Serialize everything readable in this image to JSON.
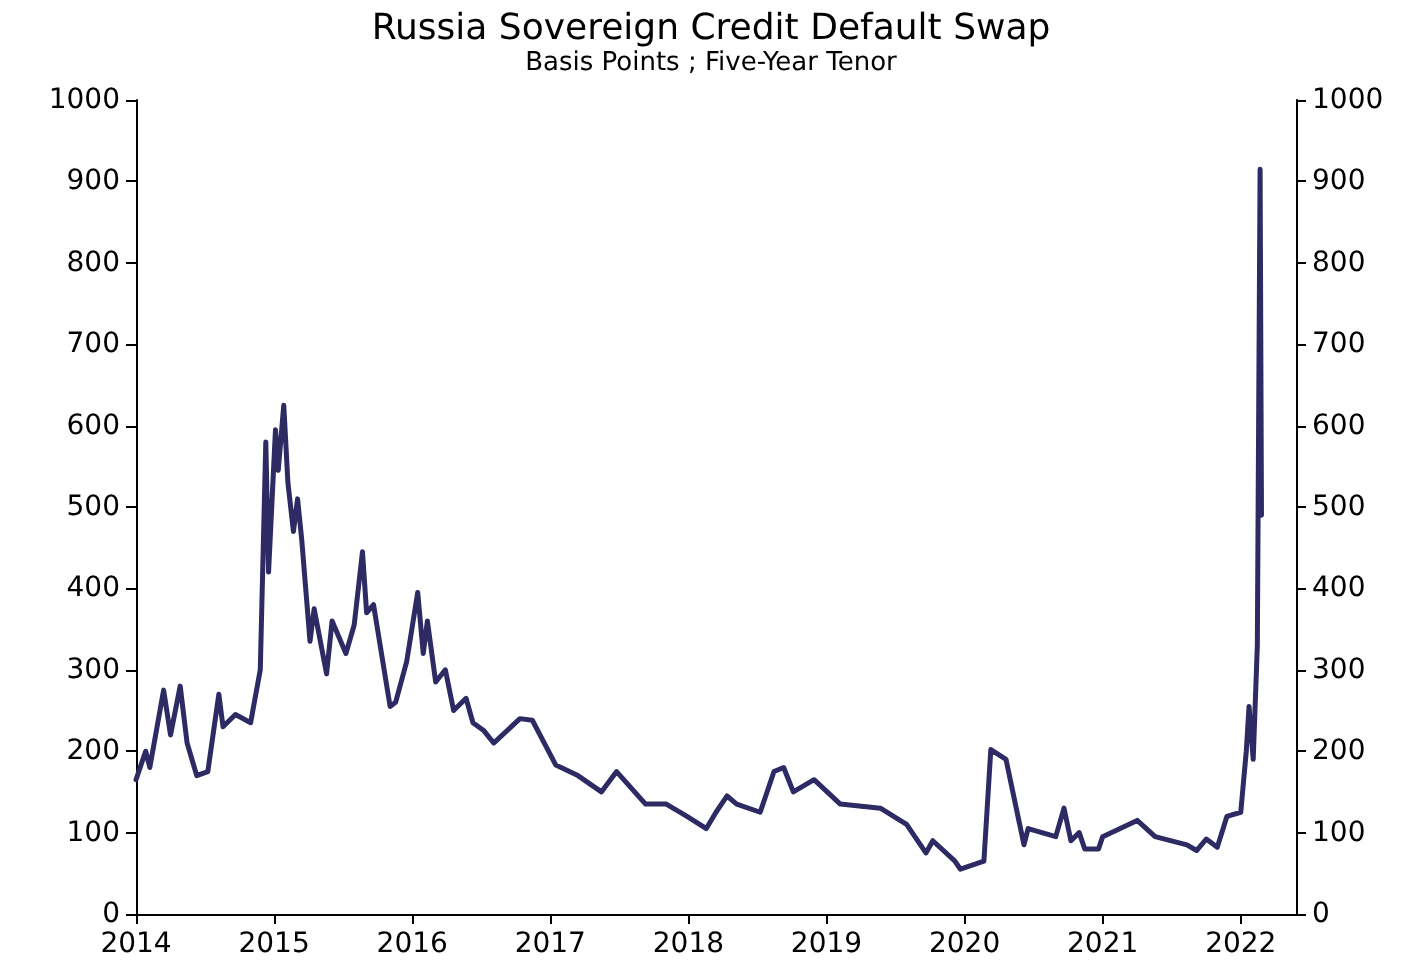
{
  "chart_data": {
    "type": "line",
    "title": "Russia Sovereign Credit Default Swap",
    "subtitle": "Basis Points ; Five-Year Tenor",
    "xlim": [
      2014,
      2022.4
    ],
    "xticks": [
      2014,
      2015,
      2016,
      2017,
      2018,
      2019,
      2020,
      2021,
      2022
    ],
    "ylim": [
      0,
      1000
    ],
    "yticks": [
      0,
      100,
      200,
      300,
      400,
      500,
      600,
      700,
      800,
      900,
      1000
    ],
    "y2lim": [
      0,
      1000
    ],
    "y2ticks": [
      0,
      100,
      200,
      300,
      400,
      500,
      600,
      700,
      800,
      900,
      1000
    ],
    "marker": "none",
    "line_style": "solid",
    "series": [
      {
        "color": "#2e2a63",
        "x": [
          2014.0,
          2014.07,
          2014.1,
          2014.2,
          2014.25,
          2014.32,
          2014.37,
          2014.44,
          2014.52,
          2014.6,
          2014.63,
          2014.72,
          2014.83,
          2014.9,
          2014.94,
          2014.96,
          2015.01,
          2015.03,
          2015.07,
          2015.1,
          2015.14,
          2015.17,
          2015.2,
          2015.26,
          2015.29,
          2015.38,
          2015.42,
          2015.52,
          2015.58,
          2015.64,
          2015.67,
          2015.72,
          2015.84,
          2015.88,
          2015.96,
          2016.04,
          2016.08,
          2016.11,
          2016.17,
          2016.24,
          2016.3,
          2016.39,
          2016.44,
          2016.52,
          2016.59,
          2016.78,
          2016.87,
          2017.04,
          2017.2,
          2017.37,
          2017.48,
          2017.69,
          2017.84,
          2017.99,
          2018.13,
          2018.2,
          2018.28,
          2018.35,
          2018.52,
          2018.62,
          2018.69,
          2018.76,
          2018.91,
          2019.1,
          2019.39,
          2019.58,
          2019.72,
          2019.77,
          2019.93,
          2019.97,
          2020.14,
          2020.19,
          2020.3,
          2020.43,
          2020.46,
          2020.66,
          2020.72,
          2020.77,
          2020.83,
          2020.87,
          2020.97,
          2021.0,
          2021.25,
          2021.38,
          2021.61,
          2021.68,
          2021.75,
          2021.83,
          2021.9,
          2022.0,
          2022.04,
          2022.06,
          2022.09,
          2022.12,
          2022.14,
          2022.15,
          2022.16
        ],
        "values": [
          165,
          200,
          180,
          275,
          220,
          280,
          210,
          170,
          175,
          270,
          230,
          245,
          235,
          300,
          580,
          420,
          595,
          545,
          625,
          530,
          470,
          510,
          460,
          335,
          375,
          295,
          360,
          320,
          355,
          445,
          370,
          380,
          255,
          260,
          310,
          395,
          320,
          360,
          285,
          300,
          250,
          265,
          235,
          225,
          210,
          240,
          238,
          183,
          170,
          150,
          175,
          135,
          135,
          120,
          105,
          125,
          145,
          135,
          125,
          175,
          180,
          150,
          165,
          135,
          130,
          110,
          75,
          90,
          65,
          55,
          65,
          202,
          190,
          85,
          105,
          95,
          130,
          90,
          100,
          80,
          80,
          95,
          115,
          95,
          85,
          78,
          92,
          82,
          120,
          125,
          200,
          255,
          190,
          330,
          915,
          490,
          490
        ]
      }
    ]
  }
}
